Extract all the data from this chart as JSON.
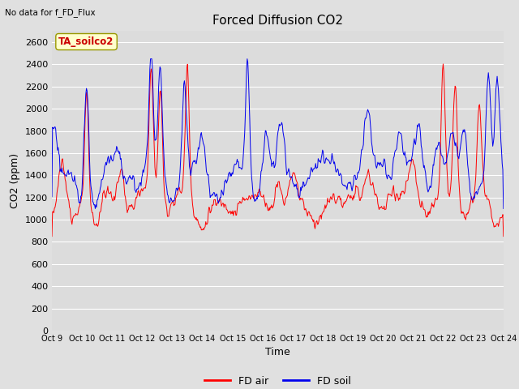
{
  "title": "Forced Diffusion CO2",
  "subtitle": "No data for f_FD_Flux",
  "annotation": "TA_soilco2",
  "ylabel": "CO2 (ppm)",
  "xlabel": "Time",
  "ylim": [
    0,
    2700
  ],
  "yticks": [
    0,
    200,
    400,
    600,
    800,
    1000,
    1200,
    1400,
    1600,
    1800,
    2000,
    2200,
    2400,
    2600
  ],
  "xtick_labels": [
    "Oct 9",
    "Oct 10",
    "Oct 11",
    "Oct 12",
    "Oct 13",
    "Oct 14",
    "Oct 15",
    "Oct 16",
    "Oct 17",
    "Oct 18",
    "Oct 19",
    "Oct 20",
    "Oct 21",
    "Oct 22",
    "Oct 23",
    "Oct 24"
  ],
  "bg_color": "#e0e0e0",
  "plot_bg_color": "#dcdcdc",
  "grid_color": "#ffffff",
  "red_color": "#ff0000",
  "blue_color": "#0000ee",
  "legend_labels": [
    "FD air",
    "FD soil"
  ],
  "title_fontsize": 11,
  "label_fontsize": 9,
  "tick_fontsize": 8,
  "n_days": 15,
  "pts_per_day": 48
}
